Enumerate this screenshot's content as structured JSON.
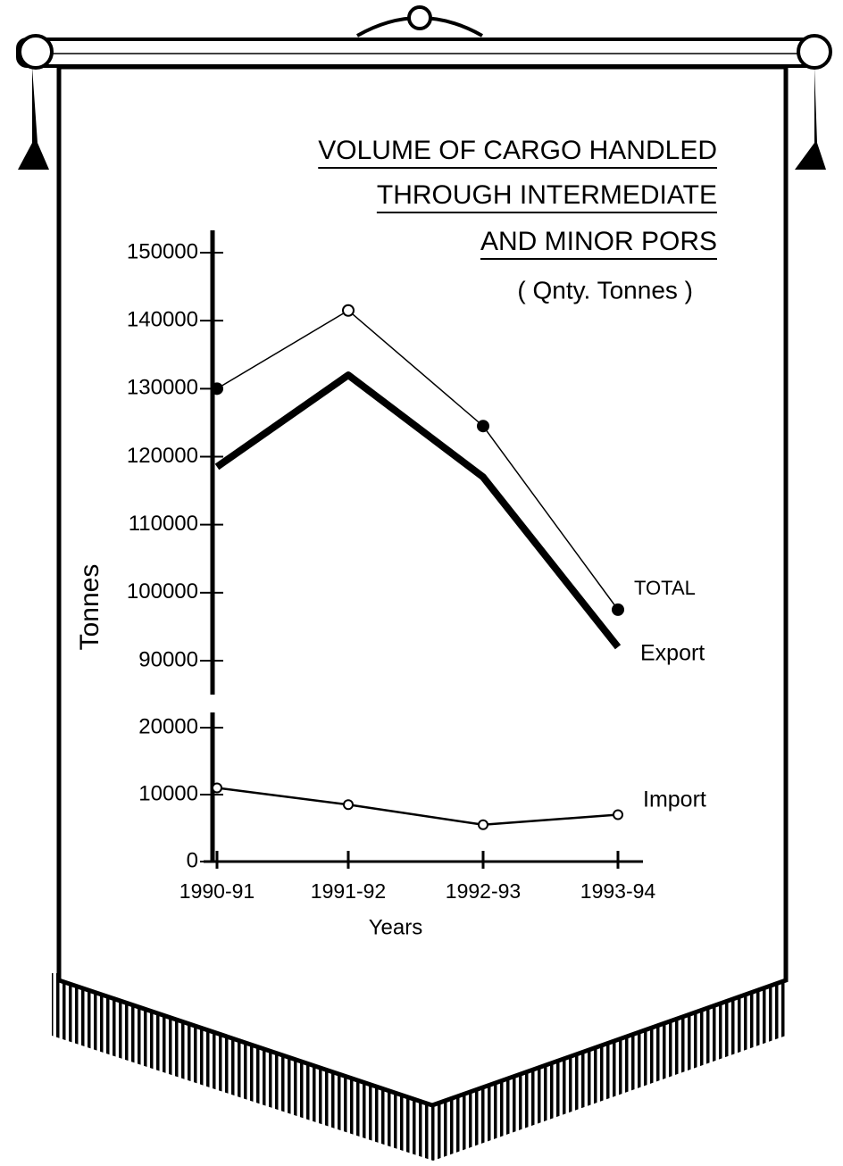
{
  "chart_data": {
    "type": "line",
    "title": [
      "VOLUME OF CARGO HANDLED",
      "THROUGH INTERMEDIATE",
      "AND MINOR PORS"
    ],
    "subtitle": "( Qnty. Tonnes )",
    "x_label": "Years",
    "y_label": "Tonnes",
    "categories": [
      "1990-91",
      "1991-92",
      "1992-93",
      "1993-94"
    ],
    "series": [
      {
        "name": "TOTAL",
        "color": "#000000",
        "values": [
          130000,
          141500,
          124500,
          97500
        ]
      },
      {
        "name": "Export",
        "color": "#000000",
        "values": [
          118500,
          132000,
          117000,
          92000
        ]
      },
      {
        "name": "Import",
        "color": "#000000",
        "values": [
          11000,
          8500,
          5500,
          7000
        ]
      }
    ],
    "ylim": [
      0,
      150000
    ],
    "axis_break": [
      20000,
      90000
    ],
    "yticks": [
      0,
      10000,
      20000,
      90000,
      100000,
      110000,
      120000,
      130000,
      140000,
      150000
    ]
  }
}
